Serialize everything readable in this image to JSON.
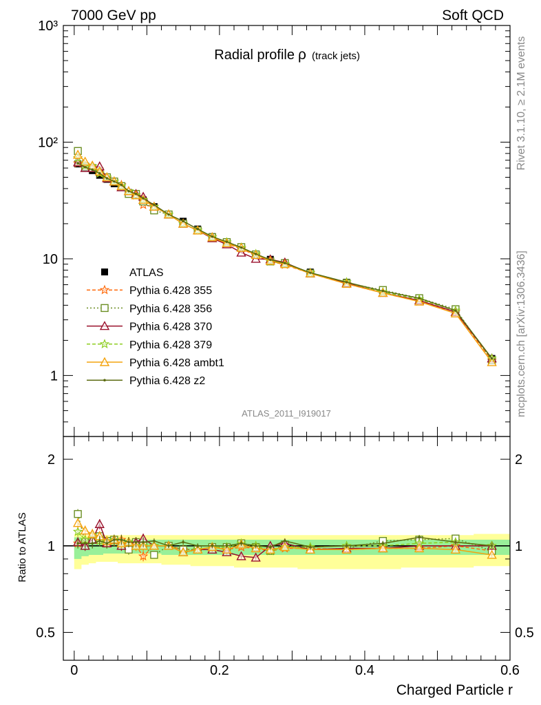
{
  "header": {
    "left": "7000 GeV pp",
    "right": "Soft QCD"
  },
  "side": {
    "rivet": "Rivet 3.1.10, ≥ 2.1M events",
    "mcplots": "mcplots.cern.ch [arXiv:1306.3436]"
  },
  "chart_data": [
    {
      "type": "line",
      "title": "Radial profile",
      "title_symbol": "ρ",
      "title_suffix": "(track jets)",
      "analysis": "ATLAS_2011_I919017",
      "yscale": "log",
      "xlim": [
        -0.015,
        0.6
      ],
      "ylim": [
        0.3,
        1000
      ],
      "y_tick_labels": [
        "10³",
        "10²",
        "10",
        "1"
      ],
      "legend_position": "middle-left",
      "x": [
        0.005,
        0.015,
        0.025,
        0.035,
        0.045,
        0.055,
        0.065,
        0.075,
        0.085,
        0.095,
        0.11,
        0.13,
        0.15,
        0.17,
        0.19,
        0.21,
        0.23,
        0.25,
        0.27,
        0.29,
        0.325,
        0.375,
        0.425,
        0.475,
        0.525,
        0.575
      ],
      "series": [
        {
          "name": "ATLAS",
          "color": "#000000",
          "marker": "square",
          "values": [
            65,
            60,
            57,
            52,
            48,
            44,
            41,
            37,
            35,
            32,
            28,
            24,
            21,
            18,
            15.5,
            14,
            12.3,
            11,
            9.9,
            9.1,
            7.7,
            6.3,
            5.2,
            4.4,
            3.5,
            1.4
          ]
        },
        {
          "name": "Pythia 6.428 355",
          "color": "#ff6a0a",
          "marker": "star",
          "values": [
            66,
            62,
            60,
            54,
            49,
            46,
            43,
            38,
            35,
            29,
            28,
            24,
            20,
            17.5,
            15.3,
            13.5,
            12.2,
            10.7,
            9.5,
            8.9,
            7.5,
            6.1,
            5.1,
            4.3,
            3.5,
            1.35
          ]
        },
        {
          "name": "Pythia 6.428 356",
          "color": "#6b8e23",
          "marker": "open-square",
          "values": [
            84,
            62,
            60,
            56,
            50,
            46,
            42,
            36,
            36,
            31,
            26,
            24,
            20,
            17.5,
            15.3,
            13.9,
            12.6,
            10.9,
            9.5,
            9.2,
            7.5,
            6.2,
            5.4,
            4.6,
            3.7,
            1.35
          ]
        },
        {
          "name": "Pythia 6.428 370",
          "color": "#990f2a",
          "marker": "open-triangle",
          "values": [
            67,
            60,
            60,
            62,
            49,
            46,
            41,
            38,
            36,
            34,
            28,
            24,
            20,
            17.5,
            15,
            13.3,
            11.3,
            10,
            9.9,
            9.3,
            7.5,
            6.2,
            5.1,
            4.4,
            3.5,
            1.4
          ]
        },
        {
          "name": "Pythia 6.428 379",
          "color": "#8ccd1d",
          "marker": "star",
          "values": [
            73,
            63,
            62,
            54,
            50,
            46,
            42,
            38,
            35,
            32,
            28,
            24,
            20,
            17.5,
            15.3,
            13.9,
            12.5,
            11,
            9.5,
            9,
            7.6,
            6.3,
            5.2,
            4.5,
            3.6,
            1.4
          ]
        },
        {
          "name": "Pythia 6.428 ambt1",
          "color": "#f4a30d",
          "marker": "open-triangle",
          "values": [
            78,
            68,
            63,
            56,
            50,
            46,
            42,
            38,
            35,
            32,
            28,
            24,
            20,
            17.5,
            15.3,
            13.6,
            12.4,
            10.8,
            9.6,
            9,
            7.5,
            6.1,
            5.1,
            4.3,
            3.4,
            1.3
          ]
        },
        {
          "name": "Pythia 6.428 z2",
          "color": "#5b6b10",
          "marker": "dot",
          "values": [
            66,
            61,
            58,
            54,
            49,
            46,
            43,
            38,
            36,
            33,
            29,
            24,
            21,
            18,
            15.5,
            14,
            12.5,
            11,
            9.8,
            9.2,
            7.6,
            6.3,
            5.3,
            4.6,
            3.6,
            1.4
          ]
        }
      ]
    },
    {
      "type": "line",
      "ylabel": "Ratio to ATLAS",
      "xlabel": "Charged Particle r",
      "yscale": "log",
      "xlim": [
        -0.015,
        0.6
      ],
      "ylim": [
        0.4,
        2.4
      ],
      "x_tick_labels": [
        "0",
        "0.2",
        "0.4",
        "0.6"
      ],
      "y_tick_labels": [
        "2",
        "1",
        "0.5"
      ],
      "band_colors": {
        "inner": "#99f099",
        "outer": "#ffff99"
      },
      "uncertainty_band": {
        "inner": [
          [
            0.9,
            1.07
          ],
          [
            0.92,
            1.06
          ],
          [
            0.93,
            1.06
          ],
          [
            0.93,
            1.06
          ],
          [
            0.94,
            1.05
          ],
          [
            0.94,
            1.05
          ],
          [
            0.94,
            1.05
          ],
          [
            0.94,
            1.05
          ],
          [
            0.94,
            1.05
          ],
          [
            0.94,
            1.05
          ],
          [
            0.94,
            1.05
          ],
          [
            0.93,
            1.05
          ],
          [
            0.93,
            1.05
          ],
          [
            0.93,
            1.05
          ],
          [
            0.93,
            1.05
          ],
          [
            0.93,
            1.05
          ],
          [
            0.93,
            1.05
          ],
          [
            0.93,
            1.05
          ],
          [
            0.93,
            1.05
          ],
          [
            0.93,
            1.05
          ],
          [
            0.93,
            1.05
          ],
          [
            0.93,
            1.05
          ],
          [
            0.93,
            1.05
          ],
          [
            0.93,
            1.05
          ],
          [
            0.93,
            1.05
          ],
          [
            0.93,
            1.05
          ]
        ],
        "outer": [
          [
            0.83,
            1.1
          ],
          [
            0.86,
            1.09
          ],
          [
            0.87,
            1.09
          ],
          [
            0.88,
            1.09
          ],
          [
            0.88,
            1.09
          ],
          [
            0.88,
            1.09
          ],
          [
            0.87,
            1.09
          ],
          [
            0.87,
            1.09
          ],
          [
            0.87,
            1.09
          ],
          [
            0.87,
            1.09
          ],
          [
            0.87,
            1.09
          ],
          [
            0.86,
            1.09
          ],
          [
            0.86,
            1.09
          ],
          [
            0.85,
            1.09
          ],
          [
            0.85,
            1.09
          ],
          [
            0.85,
            1.09
          ],
          [
            0.84,
            1.09
          ],
          [
            0.84,
            1.09
          ],
          [
            0.84,
            1.09
          ],
          [
            0.84,
            1.09
          ],
          [
            0.83,
            1.09
          ],
          [
            0.83,
            1.09
          ],
          [
            0.83,
            1.09
          ],
          [
            0.84,
            1.09
          ],
          [
            0.84,
            1.09
          ],
          [
            0.85,
            1.1
          ]
        ]
      },
      "x": [
        0.005,
        0.015,
        0.025,
        0.035,
        0.045,
        0.055,
        0.065,
        0.075,
        0.085,
        0.095,
        0.11,
        0.13,
        0.15,
        0.17,
        0.19,
        0.21,
        0.23,
        0.25,
        0.27,
        0.29,
        0.325,
        0.375,
        0.425,
        0.475,
        0.525,
        0.575
      ],
      "series": [
        {
          "name": "Pythia 6.428 355",
          "color": "#ff6a0a",
          "marker": "star",
          "values": [
            1.02,
            1.03,
            1.05,
            1.04,
            1.02,
            1.04,
            1.05,
            1.02,
            1.0,
            0.92,
            1.0,
            1.0,
            0.97,
            0.97,
            0.99,
            0.97,
            0.99,
            0.98,
            0.96,
            0.98,
            0.98,
            0.97,
            0.98,
            0.98,
            1.0,
            0.96
          ]
        },
        {
          "name": "Pythia 6.428 356",
          "color": "#6b8e23",
          "marker": "open-square",
          "values": [
            1.29,
            1.03,
            1.05,
            1.08,
            1.04,
            1.05,
            1.02,
            0.97,
            1.03,
            1.0,
            0.93,
            1.0,
            0.97,
            0.97,
            0.99,
            0.99,
            1.02,
            0.99,
            0.96,
            1.01,
            0.97,
            0.98,
            1.04,
            1.05,
            1.06,
            0.96
          ]
        },
        {
          "name": "Pythia 6.428 370",
          "color": "#990f2a",
          "marker": "open-triangle",
          "values": [
            1.03,
            1.0,
            1.05,
            1.19,
            1.02,
            1.05,
            1.0,
            1.03,
            1.03,
            1.06,
            1.0,
            1.0,
            0.95,
            0.97,
            0.97,
            0.95,
            0.92,
            0.91,
            1.0,
            1.02,
            0.97,
            0.98,
            0.98,
            1.0,
            1.0,
            1.0
          ]
        },
        {
          "name": "Pythia 6.428 379",
          "color": "#8ccd1d",
          "marker": "star",
          "values": [
            1.12,
            1.05,
            1.09,
            1.04,
            1.04,
            1.05,
            1.02,
            1.03,
            1.0,
            1.0,
            1.0,
            1.0,
            0.95,
            0.97,
            0.99,
            0.99,
            1.02,
            1.0,
            0.96,
            0.99,
            0.99,
            1.0,
            1.0,
            1.02,
            1.03,
            1.0
          ]
        },
        {
          "name": "Pythia 6.428 ambt1",
          "color": "#f4a30d",
          "marker": "open-triangle",
          "values": [
            1.2,
            1.13,
            1.1,
            1.08,
            1.04,
            1.05,
            1.02,
            1.03,
            1.0,
            1.0,
            1.0,
            1.0,
            0.95,
            0.97,
            0.99,
            0.97,
            1.01,
            0.98,
            0.97,
            0.99,
            0.97,
            0.97,
            0.98,
            0.98,
            0.97,
            0.93
          ]
        },
        {
          "name": "Pythia 6.428 z2",
          "color": "#5b6b10",
          "marker": "dot",
          "values": [
            1.02,
            1.02,
            1.02,
            1.04,
            1.02,
            1.05,
            1.05,
            1.03,
            1.03,
            1.03,
            1.04,
            1.0,
            1.03,
            1.0,
            1.0,
            1.0,
            1.02,
            1.0,
            0.99,
            1.04,
            0.99,
            1.0,
            1.02,
            1.07,
            1.03,
            1.0
          ]
        }
      ]
    }
  ]
}
